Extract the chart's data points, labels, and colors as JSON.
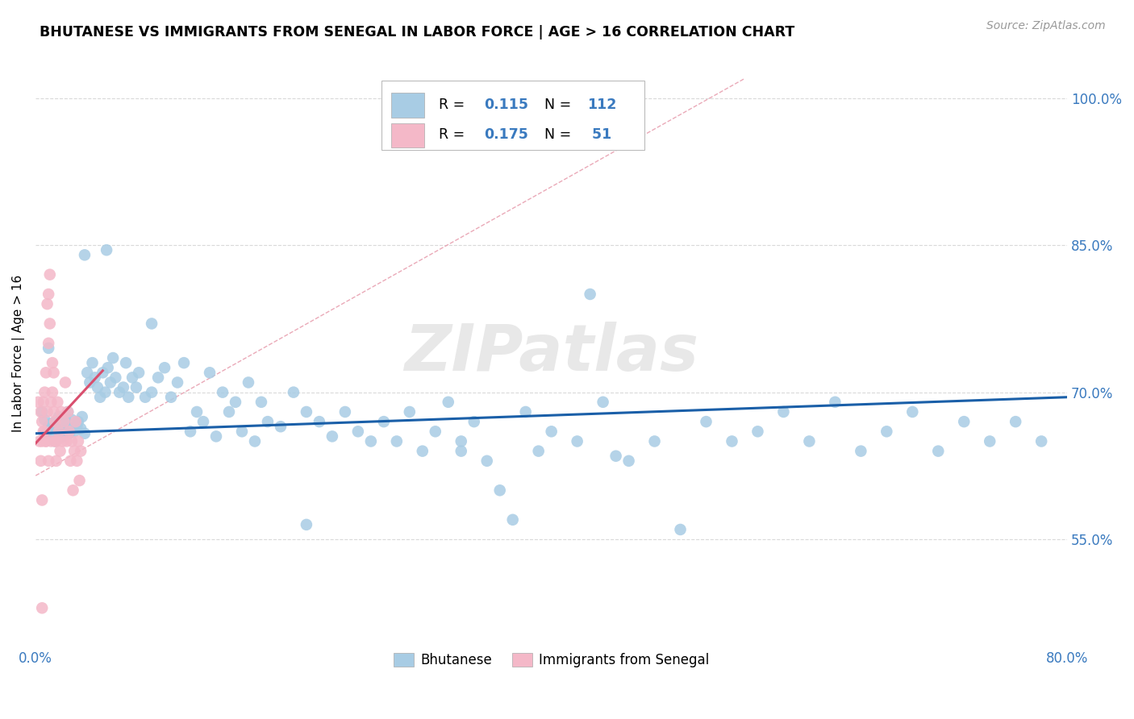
{
  "title": "BHUTANESE VS IMMIGRANTS FROM SENEGAL IN LABOR FORCE | AGE > 16 CORRELATION CHART",
  "source_text": "Source: ZipAtlas.com",
  "ylabel": "In Labor Force | Age > 16",
  "xlim": [
    0.0,
    0.8
  ],
  "ylim": [
    0.44,
    1.04
  ],
  "yticks": [
    0.55,
    0.7,
    0.85,
    1.0
  ],
  "ytick_labels": [
    "55.0%",
    "70.0%",
    "85.0%",
    "100.0%"
  ],
  "xticks": [
    0.0,
    0.2,
    0.4,
    0.6,
    0.8
  ],
  "xtick_labels": [
    "0.0%",
    "",
    "",
    "",
    "80.0%"
  ],
  "blue_color": "#a8cce4",
  "pink_color": "#f4b8c8",
  "blue_line_color": "#1a5fa8",
  "pink_line_color": "#d94f6e",
  "pink_dash_color": "#e8a0b0",
  "watermark": "ZIPatlas",
  "bhutanese_x": [
    0.005,
    0.007,
    0.009,
    0.01,
    0.012,
    0.013,
    0.015,
    0.017,
    0.018,
    0.02,
    0.021,
    0.022,
    0.023,
    0.025,
    0.026,
    0.028,
    0.03,
    0.032,
    0.033,
    0.035,
    0.036,
    0.038,
    0.04,
    0.042,
    0.044,
    0.046,
    0.048,
    0.05,
    0.052,
    0.054,
    0.056,
    0.058,
    0.06,
    0.062,
    0.065,
    0.068,
    0.07,
    0.072,
    0.075,
    0.078,
    0.08,
    0.085,
    0.09,
    0.095,
    0.1,
    0.105,
    0.11,
    0.115,
    0.12,
    0.125,
    0.13,
    0.135,
    0.14,
    0.145,
    0.15,
    0.155,
    0.16,
    0.165,
    0.17,
    0.175,
    0.18,
    0.19,
    0.2,
    0.21,
    0.22,
    0.23,
    0.24,
    0.25,
    0.26,
    0.27,
    0.28,
    0.29,
    0.3,
    0.31,
    0.32,
    0.33,
    0.34,
    0.35,
    0.36,
    0.37,
    0.38,
    0.39,
    0.4,
    0.42,
    0.44,
    0.46,
    0.48,
    0.5,
    0.52,
    0.54,
    0.56,
    0.58,
    0.6,
    0.62,
    0.64,
    0.66,
    0.68,
    0.7,
    0.72,
    0.74,
    0.76,
    0.78,
    0.038,
    0.055,
    0.43,
    0.09,
    0.21,
    0.33,
    0.45,
    0.015,
    0.025,
    0.01
  ],
  "bhutanese_y": [
    0.68,
    0.672,
    0.66,
    0.665,
    0.668,
    0.655,
    0.67,
    0.663,
    0.675,
    0.66,
    0.655,
    0.668,
    0.672,
    0.665,
    0.658,
    0.672,
    0.66,
    0.665,
    0.67,
    0.663,
    0.675,
    0.658,
    0.72,
    0.71,
    0.73,
    0.715,
    0.705,
    0.695,
    0.72,
    0.7,
    0.725,
    0.71,
    0.735,
    0.715,
    0.7,
    0.705,
    0.73,
    0.695,
    0.715,
    0.705,
    0.72,
    0.695,
    0.7,
    0.715,
    0.725,
    0.695,
    0.71,
    0.73,
    0.66,
    0.68,
    0.67,
    0.72,
    0.655,
    0.7,
    0.68,
    0.69,
    0.66,
    0.71,
    0.65,
    0.69,
    0.67,
    0.665,
    0.7,
    0.68,
    0.67,
    0.655,
    0.68,
    0.66,
    0.65,
    0.67,
    0.65,
    0.68,
    0.64,
    0.66,
    0.69,
    0.65,
    0.67,
    0.63,
    0.6,
    0.57,
    0.68,
    0.64,
    0.66,
    0.65,
    0.69,
    0.63,
    0.65,
    0.56,
    0.67,
    0.65,
    0.66,
    0.68,
    0.65,
    0.69,
    0.64,
    0.66,
    0.68,
    0.64,
    0.67,
    0.65,
    0.67,
    0.65,
    0.84,
    0.845,
    0.8,
    0.77,
    0.565,
    0.64,
    0.635,
    0.65,
    0.68,
    0.745
  ],
  "senegal_x": [
    0.002,
    0.003,
    0.004,
    0.004,
    0.005,
    0.005,
    0.006,
    0.006,
    0.007,
    0.007,
    0.008,
    0.008,
    0.009,
    0.009,
    0.01,
    0.01,
    0.011,
    0.011,
    0.012,
    0.012,
    0.013,
    0.013,
    0.014,
    0.014,
    0.015,
    0.015,
    0.016,
    0.016,
    0.017,
    0.018,
    0.019,
    0.02,
    0.021,
    0.022,
    0.023,
    0.024,
    0.025,
    0.026,
    0.027,
    0.028,
    0.029,
    0.03,
    0.031,
    0.032,
    0.033,
    0.034,
    0.035,
    0.005,
    0.008,
    0.01,
    0.005
  ],
  "senegal_y": [
    0.69,
    0.65,
    0.63,
    0.68,
    0.67,
    0.65,
    0.69,
    0.66,
    0.7,
    0.66,
    0.72,
    0.65,
    0.68,
    0.79,
    0.75,
    0.8,
    0.82,
    0.77,
    0.69,
    0.65,
    0.73,
    0.7,
    0.68,
    0.72,
    0.65,
    0.67,
    0.63,
    0.65,
    0.69,
    0.66,
    0.64,
    0.68,
    0.65,
    0.67,
    0.71,
    0.65,
    0.68,
    0.66,
    0.63,
    0.65,
    0.6,
    0.64,
    0.67,
    0.63,
    0.65,
    0.61,
    0.64,
    0.59,
    0.65,
    0.63,
    0.48
  ],
  "background_color": "#ffffff",
  "grid_color": "#d0d0d0",
  "leg_R1": "R = ",
  "leg_V1": "0.115",
  "leg_N1_label": "N = ",
  "leg_N1_val": "112",
  "leg_R2": "R = ",
  "leg_V2": "0.175",
  "leg_N2_label": "N = ",
  "leg_N2_val": " 51"
}
